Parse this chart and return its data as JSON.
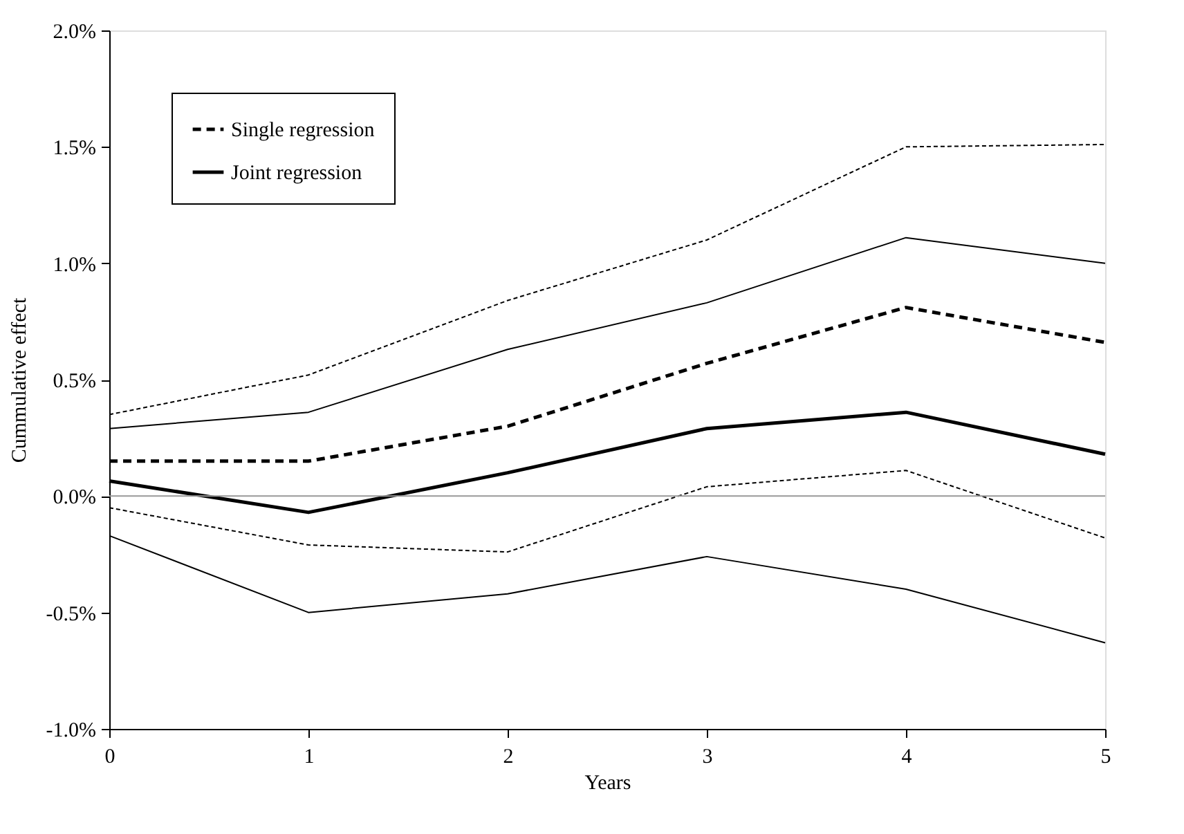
{
  "chart_data": {
    "type": "line",
    "xlabel": "Years",
    "ylabel": "Cummulative effect",
    "x": [
      0,
      1,
      2,
      3,
      4,
      5
    ],
    "series": [
      {
        "name": "Single regression",
        "color": "#000000",
        "line_style": "dashed",
        "values": [
          0.15,
          0.15,
          0.3,
          0.57,
          0.81,
          0.66
        ]
      },
      {
        "name": "Joint regression",
        "color": "#000000",
        "line_style": "solid",
        "values": [
          0.065,
          -0.07,
          0.1,
          0.29,
          0.36,
          0.18
        ]
      },
      {
        "color": "#000000",
        "line_style": "dotted",
        "values": [
          0.35,
          0.52,
          0.84,
          1.1,
          1.5,
          1.51
        ]
      },
      {
        "color": "#000000",
        "line_style": "dotted",
        "values": [
          -0.05,
          -0.21,
          -0.24,
          0.04,
          0.11,
          -0.18
        ]
      },
      {
        "color": "#000000",
        "line_style": "solid",
        "values": [
          0.29,
          0.36,
          0.63,
          0.83,
          1.11,
          1.0
        ]
      },
      {
        "color": "#000000",
        "line_style": "solid",
        "values": [
          -0.17,
          -0.5,
          -0.42,
          -0.26,
          -0.4,
          -0.63
        ]
      }
    ],
    "xlim": [
      0,
      5
    ],
    "xticks": [
      0,
      1,
      2,
      3,
      4,
      5
    ],
    "ylim": [
      -1.0,
      2.0
    ],
    "yticks": [
      {
        "value": -1.0,
        "label": "-1.0%"
      },
      {
        "value": -0.5,
        "label": "-0.5%"
      },
      {
        "value": 0.0,
        "label": "0.0%"
      },
      {
        "value": 0.5,
        "label": "0.5%"
      },
      {
        "value": 1.0,
        "label": "1.0%"
      },
      {
        "value": 1.5,
        "label": "1.5%"
      },
      {
        "value": 2.0,
        "label": "2.0%"
      }
    ],
    "ref_lines": [
      {
        "axis": "y",
        "value": 0,
        "color": "#999999"
      }
    ],
    "grid": false,
    "legend": "top left",
    "marker": "none"
  }
}
